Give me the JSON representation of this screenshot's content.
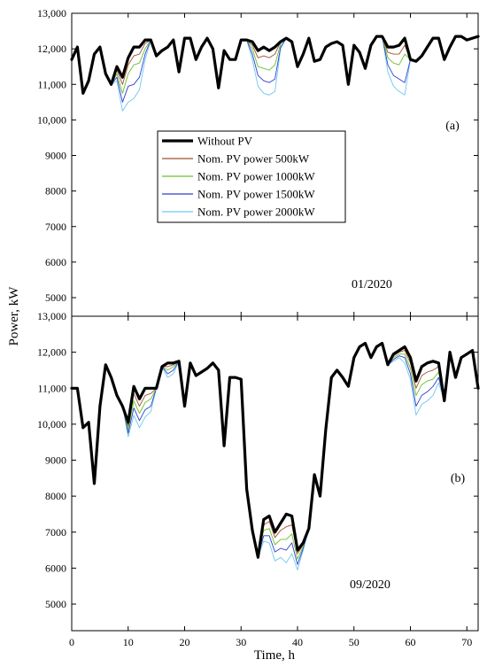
{
  "chart_data": {
    "type": "line",
    "xlabel": "Time, h",
    "ylabel": "Power, kW",
    "xlim": [
      0,
      72
    ],
    "xticks": [
      "0",
      "10",
      "20",
      "30",
      "40",
      "50",
      "60",
      "70"
    ],
    "grid": false,
    "legend": {
      "placement": "center-left of upper panel",
      "panel": 0
    },
    "series_styles": [
      {
        "name": "Without PV",
        "color": "#000000"
      },
      {
        "name": "Nom. PV power 500kW",
        "color": "#a0522d"
      },
      {
        "name": "Nom. PV power 1000kW",
        "color": "#6abf2e"
      },
      {
        "name": "Nom. PV power 1500kW",
        "color": "#2c3fd0"
      },
      {
        "name": "Nom. PV power 2000kW",
        "color": "#6ec6f0"
      }
    ],
    "panels": [
      {
        "label": "(a)",
        "date_label": "01/2020",
        "ylim": [
          4500,
          13000
        ],
        "yticks": [
          "5000",
          "6000",
          "7000",
          "8000",
          "9000",
          "10,000",
          "11,000",
          "12,000",
          "13,000"
        ],
        "x": [
          0,
          1,
          2,
          3,
          4,
          5,
          6,
          7,
          8,
          9,
          10,
          11,
          12,
          13,
          14,
          15,
          16,
          17,
          18,
          19,
          20,
          21,
          22,
          23,
          24,
          25,
          26,
          27,
          28,
          29,
          30,
          31,
          32,
          33,
          34,
          35,
          36,
          37,
          38,
          39,
          40,
          41,
          42,
          43,
          44,
          45,
          46,
          47,
          48,
          49,
          50,
          51,
          52,
          53,
          54,
          55,
          56,
          57,
          58,
          59,
          60,
          61,
          62,
          63,
          64,
          65,
          66,
          67,
          68,
          69,
          70,
          71,
          72
        ],
        "series": [
          {
            "name": "Without PV",
            "values": [
              11700,
              12050,
              10750,
              11100,
              11850,
              12050,
              11300,
              11000,
              11500,
              11200,
              11750,
              12050,
              12050,
              12250,
              12250,
              11800,
              11950,
              12050,
              12250,
              11350,
              12300,
              12300,
              11700,
              12050,
              12300,
              12000,
              10900,
              11950,
              11700,
              11700,
              12250,
              12250,
              12200,
              11950,
              12050,
              11950,
              12050,
              12200,
              12300,
              12200,
              11500,
              11850,
              12300,
              11650,
              11700,
              12050,
              12150,
              12200,
              12100,
              11000,
              12100,
              11900,
              11450,
              12100,
              12350,
              12350,
              12050,
              12050,
              12100,
              12300,
              11700,
              11650,
              11800,
              12050,
              12300,
              12300,
              11700,
              12050,
              12350,
              12350,
              12250,
              12300,
              12350
            ]
          },
          {
            "name": "Nom. PV power 500kW",
            "values": [
              11700,
              12050,
              10750,
              11100,
              11850,
              12050,
              11300,
              11000,
              11400,
              11000,
              11550,
              11800,
              11850,
              12150,
              12250,
              11800,
              11950,
              12050,
              12250,
              11350,
              12300,
              12300,
              11700,
              12050,
              12300,
              12000,
              10900,
              11950,
              11700,
              11700,
              12250,
              12250,
              12100,
              11750,
              11800,
              11750,
              11850,
              12200,
              12300,
              12200,
              11500,
              11850,
              12300,
              11650,
              11700,
              12050,
              12150,
              12200,
              12100,
              11000,
              12100,
              11900,
              11450,
              12100,
              12350,
              12350,
              11900,
              11850,
              11850,
              12100,
              11700,
              11650,
              11800,
              12050,
              12300,
              12300,
              11700,
              12050,
              12350,
              12350,
              12250,
              12300,
              12350
            ]
          },
          {
            "name": "Nom. PV power 1000kW",
            "values": [
              11700,
              12050,
              10750,
              11100,
              11850,
              12050,
              11300,
              11000,
              11300,
              10750,
              11300,
              11550,
              11600,
              12000,
              12250,
              11800,
              11950,
              12050,
              12250,
              11350,
              12300,
              12300,
              11700,
              12050,
              12300,
              12000,
              10900,
              11950,
              11700,
              11700,
              12250,
              12250,
              12000,
              11500,
              11450,
              11400,
              11550,
              12150,
              12300,
              12200,
              11500,
              11850,
              12300,
              11650,
              11700,
              12050,
              12150,
              12200,
              12100,
              11000,
              12100,
              11900,
              11450,
              12100,
              12350,
              12350,
              11750,
              11600,
              11550,
              11850,
              11700,
              11650,
              11800,
              12050,
              12300,
              12300,
              11700,
              12050,
              12350,
              12350,
              12250,
              12300,
              12350
            ]
          },
          {
            "name": "Nom. PV power 1500kW",
            "values": [
              11700,
              12050,
              10750,
              11100,
              11850,
              12050,
              11300,
              11000,
              11200,
              10500,
              10950,
              11000,
              11200,
              11850,
              12250,
              11800,
              11950,
              12050,
              12250,
              11350,
              12300,
              12300,
              11700,
              12050,
              12300,
              12000,
              10900,
              11950,
              11700,
              11700,
              12250,
              12250,
              11850,
              11250,
              11100,
              11050,
              11150,
              12050,
              12300,
              12200,
              11500,
              11850,
              12300,
              11650,
              11700,
              12050,
              12150,
              12200,
              12100,
              11000,
              12100,
              11900,
              11450,
              12100,
              12350,
              12350,
              11550,
              11250,
              11150,
              11050,
              11700,
              11650,
              11800,
              12050,
              12300,
              12300,
              11700,
              12050,
              12350,
              12350,
              12250,
              12300,
              12350
            ]
          },
          {
            "name": "Nom. PV power 2000kW",
            "values": [
              11700,
              12050,
              10750,
              11100,
              11850,
              12050,
              11300,
              11000,
              11100,
              10250,
              10500,
              10600,
              10850,
              11700,
              12250,
              11800,
              11950,
              12050,
              12250,
              11350,
              12300,
              12300,
              11700,
              12050,
              12300,
              12000,
              10900,
              11950,
              11700,
              11700,
              12250,
              12250,
              11700,
              10950,
              10750,
              10700,
              10800,
              12000,
              12300,
              12200,
              11500,
              11850,
              12300,
              11650,
              11700,
              12050,
              12150,
              12200,
              12100,
              11000,
              12100,
              11900,
              11450,
              12100,
              12350,
              12350,
              11350,
              10950,
              10800,
              10700,
              11700,
              11650,
              11800,
              12050,
              12300,
              12300,
              11700,
              12050,
              12350,
              12350,
              12250,
              12300,
              12350
            ]
          }
        ]
      },
      {
        "label": "(b)",
        "date_label": "09/2020",
        "ylim": [
          4500,
          13000
        ],
        "yticks": [
          "5000",
          "6000",
          "7000",
          "8000",
          "9000",
          "10,000",
          "11,000",
          "12,000",
          "13,000"
        ],
        "x": [
          0,
          1,
          2,
          3,
          4,
          5,
          6,
          7,
          8,
          9,
          10,
          11,
          12,
          13,
          14,
          15,
          16,
          17,
          18,
          19,
          20,
          21,
          22,
          23,
          24,
          25,
          26,
          27,
          28,
          29,
          30,
          31,
          32,
          33,
          34,
          35,
          36,
          37,
          38,
          39,
          40,
          41,
          42,
          43,
          44,
          45,
          46,
          47,
          48,
          49,
          50,
          51,
          52,
          53,
          54,
          55,
          56,
          57,
          58,
          59,
          60,
          61,
          62,
          63,
          64,
          65,
          66,
          67,
          68,
          69,
          70,
          71,
          72
        ],
        "series": [
          {
            "name": "Without PV",
            "values": [
              11000,
              11000,
              9900,
              10050,
              8350,
              10500,
              11650,
              11300,
              10800,
              10500,
              10050,
              11050,
              10700,
              11000,
              11000,
              11000,
              11600,
              11700,
              11700,
              11750,
              10500,
              11700,
              11350,
              11450,
              11550,
              11700,
              11500,
              9400,
              11300,
              11300,
              11250,
              8200,
              7050,
              6300,
              7350,
              7450,
              7000,
              7250,
              7500,
              7450,
              6500,
              6700,
              7100,
              8600,
              8000,
              9850,
              11300,
              11500,
              11300,
              11050,
              11850,
              12150,
              12250,
              11850,
              12150,
              12250,
              11650,
              11950,
              12050,
              12150,
              11850,
              11200,
              11600,
              11700,
              11750,
              11700,
              10650,
              12000,
              11300,
              11850,
              11950,
              12050,
              11000
            ]
          },
          {
            "name": "Nom. PV power 500kW",
            "values": [
              11000,
              11000,
              9900,
              10050,
              8350,
              10500,
              11650,
              11300,
              10800,
              10500,
              9950,
              10850,
              10500,
              10800,
              10850,
              11000,
              11600,
              11600,
              11650,
              11750,
              10500,
              11700,
              11350,
              11450,
              11550,
              11700,
              11500,
              9400,
              11300,
              11300,
              11250,
              8200,
              7050,
              6300,
              7200,
              7300,
              6850,
              7050,
              7150,
              7200,
              6400,
              6650,
              7100,
              8600,
              8000,
              9850,
              11300,
              11500,
              11300,
              11050,
              11850,
              12150,
              12250,
              11850,
              12150,
              12250,
              11650,
              11900,
              12000,
              12050,
              11700,
              11000,
              11350,
              11450,
              11500,
              11600,
              10650,
              12000,
              11300,
              11850,
              11950,
              12050,
              11000
            ]
          },
          {
            "name": "Nom. PV power 1000kW",
            "values": [
              11000,
              11000,
              9900,
              10050,
              8350,
              10500,
              11650,
              11300,
              10800,
              10500,
              9850,
              10650,
              10300,
              10600,
              10700,
              11000,
              11600,
              11500,
              11600,
              11750,
              10500,
              11700,
              11350,
              11450,
              11550,
              11700,
              11500,
              9400,
              11300,
              11300,
              11250,
              8200,
              7050,
              6300,
              7050,
              7100,
              6650,
              6800,
              6800,
              6950,
              6250,
              6600,
              7100,
              8600,
              8000,
              9850,
              11300,
              11500,
              11300,
              11050,
              11850,
              12150,
              12250,
              11850,
              12150,
              12250,
              11650,
              11850,
              11950,
              11950,
              11550,
              10800,
              11100,
              11200,
              11250,
              11450,
              10650,
              12000,
              11300,
              11850,
              11950,
              12050,
              11000
            ]
          },
          {
            "name": "Nom. PV power 1500kW",
            "values": [
              11000,
              11000,
              9900,
              10050,
              8350,
              10500,
              11650,
              11300,
              10800,
              10500,
              9750,
              10450,
              10100,
              10400,
              10500,
              11000,
              11600,
              11400,
              11500,
              11750,
              10500,
              11700,
              11350,
              11450,
              11550,
              11700,
              11500,
              9400,
              11300,
              11300,
              11250,
              8200,
              7050,
              6300,
              6900,
              6900,
              6450,
              6550,
              6500,
              6700,
              6100,
              6550,
              7100,
              8600,
              8000,
              9850,
              11300,
              11500,
              11300,
              11050,
              11850,
              12150,
              12250,
              11850,
              12150,
              12250,
              11650,
              11800,
              11900,
              11850,
              11400,
              10500,
              10800,
              10900,
              11050,
              11300,
              10650,
              12000,
              11300,
              11850,
              11950,
              12050,
              11000
            ]
          },
          {
            "name": "Nom. PV power 2000kW",
            "values": [
              11000,
              11000,
              9900,
              10050,
              8350,
              10500,
              11650,
              11300,
              10800,
              10500,
              9650,
              10250,
              9900,
              10200,
              10350,
              11000,
              11600,
              11300,
              11400,
              11750,
              10500,
              11700,
              11350,
              11450,
              11550,
              11700,
              11500,
              9400,
              11300,
              11300,
              11250,
              8200,
              7050,
              6300,
              6750,
              6700,
              6200,
              6300,
              6150,
              6400,
              5950,
              6500,
              7100,
              8600,
              8000,
              9850,
              11300,
              11500,
              11300,
              11050,
              11850,
              12150,
              12250,
              11850,
              12150,
              12250,
              11650,
              11750,
              11850,
              11700,
              11250,
              10250,
              10550,
              10650,
              10800,
              11150,
              10650,
              12000,
              11300,
              11850,
              11950,
              12050,
              11000
            ]
          }
        ]
      }
    ]
  }
}
